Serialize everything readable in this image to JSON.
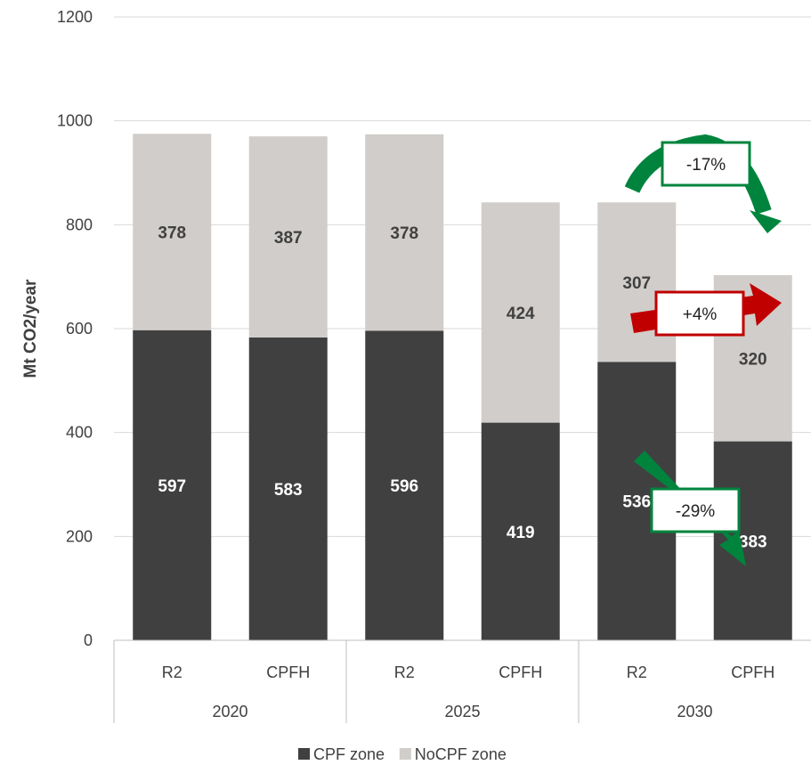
{
  "chart_data": {
    "type": "bar",
    "stacked": true,
    "ylabel": "Mt CO2/year",
    "ylim": [
      0,
      1200
    ],
    "yticks": [
      0,
      200,
      400,
      600,
      800,
      1000,
      1200
    ],
    "grid": true,
    "categories": [
      "R2",
      "CPFH",
      "R2",
      "CPFH",
      "R2",
      "CPFH"
    ],
    "groups": [
      {
        "label": "2020",
        "span": 2
      },
      {
        "label": "2025",
        "span": 2
      },
      {
        "label": "2030",
        "span": 2
      }
    ],
    "series": [
      {
        "name": "CPF zone",
        "color": "#404040",
        "label_color": "#ffffff",
        "values": [
          597,
          583,
          596,
          419,
          536,
          383
        ]
      },
      {
        "name": "NoCPF zone",
        "color": "#d0cdca",
        "label_color": "#404040",
        "values": [
          378,
          387,
          378,
          424,
          307,
          320
        ]
      }
    ],
    "legend": "bottom",
    "annotations": [
      {
        "text": "-17%",
        "color": "#00843d",
        "kind": "arrow-curved"
      },
      {
        "text": "+4%",
        "color": "#c00000",
        "kind": "arrow-right"
      },
      {
        "text": "-29%",
        "color": "#00843d",
        "kind": "arrow-down-right"
      }
    ]
  }
}
